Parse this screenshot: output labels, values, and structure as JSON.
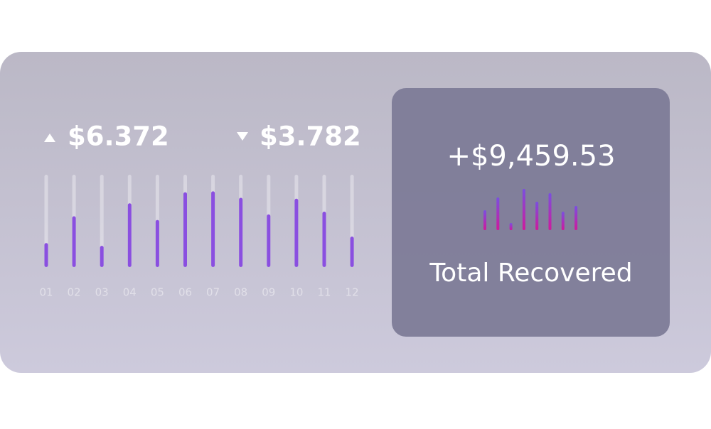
{
  "stats": {
    "up_amount": "$6.372",
    "down_amount": "$3.782"
  },
  "panel": {
    "total": "+$9,459.53",
    "caption": "Total Recovered"
  },
  "chart_data": [
    {
      "type": "bar",
      "categories": [
        "01",
        "02",
        "03",
        "04",
        "05",
        "06",
        "07",
        "08",
        "09",
        "10",
        "11",
        "12"
      ],
      "values": [
        26,
        55,
        23,
        69,
        51,
        81,
        82,
        75,
        57,
        74,
        60,
        33
      ],
      "color": "#8a4fe0",
      "ylim": [
        0,
        100
      ]
    },
    {
      "type": "bar",
      "values": [
        28,
        46,
        10,
        58,
        40,
        52,
        26,
        34
      ],
      "color": "#c21c9c",
      "ylim": [
        0,
        60
      ]
    }
  ]
}
